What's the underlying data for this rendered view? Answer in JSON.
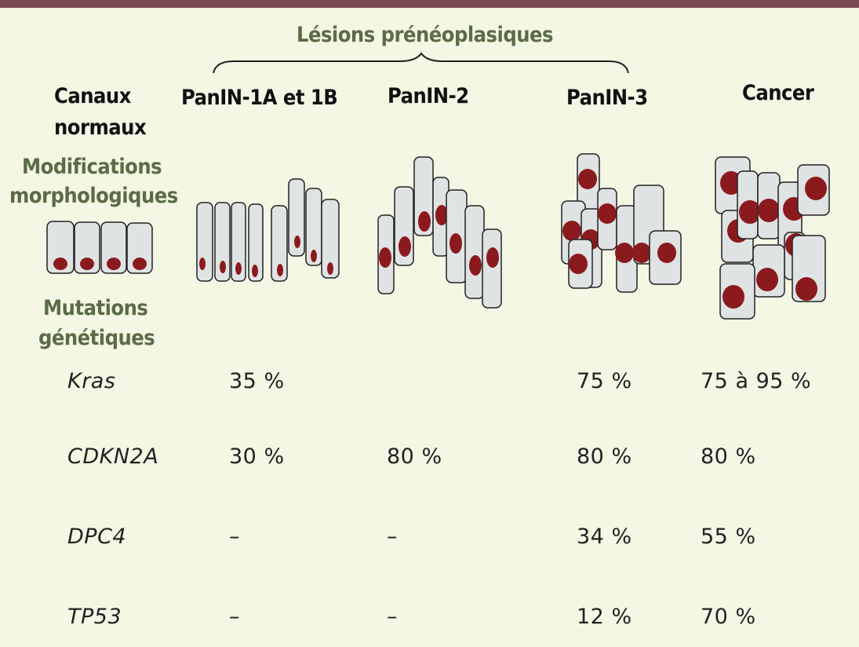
{
  "title": "Lésions prénéoplasiques",
  "columns": {
    "normal_line1": "Canaux",
    "normal_line2": "normaux",
    "panin1": "PanIN-1A et 1B",
    "panin2": "PanIN-2",
    "panin3": "PanIN-3",
    "cancer": "Cancer"
  },
  "row_labels": {
    "morpho_line1": "Modifications",
    "morpho_line2": "morphologiques",
    "mut_line1": "Mutations",
    "mut_line2": "génétiques"
  },
  "genes": [
    {
      "name": "Kras",
      "panin1": "35 %",
      "panin2": "",
      "panin3": "75 %",
      "cancer": "75 à 95 %"
    },
    {
      "name": "CDKN2A",
      "panin1": "30 %",
      "panin2": "80 %",
      "panin3": "80 %",
      "cancer": "80 %"
    },
    {
      "name": "DPC4",
      "panin1": "–",
      "panin2": "–",
      "panin3": "34 %",
      "cancer": "55 %"
    },
    {
      "name": "TP53",
      "panin1": "–",
      "panin2": "–",
      "panin3": "12 %",
      "cancer": "70 %"
    }
  ],
  "colors": {
    "background": "#f4f7e4",
    "top_bar": "#7a4a52",
    "header_green": "#5b6b47",
    "cell_fill": "#dfe3e3",
    "nucleus": "#8b1a1e"
  }
}
